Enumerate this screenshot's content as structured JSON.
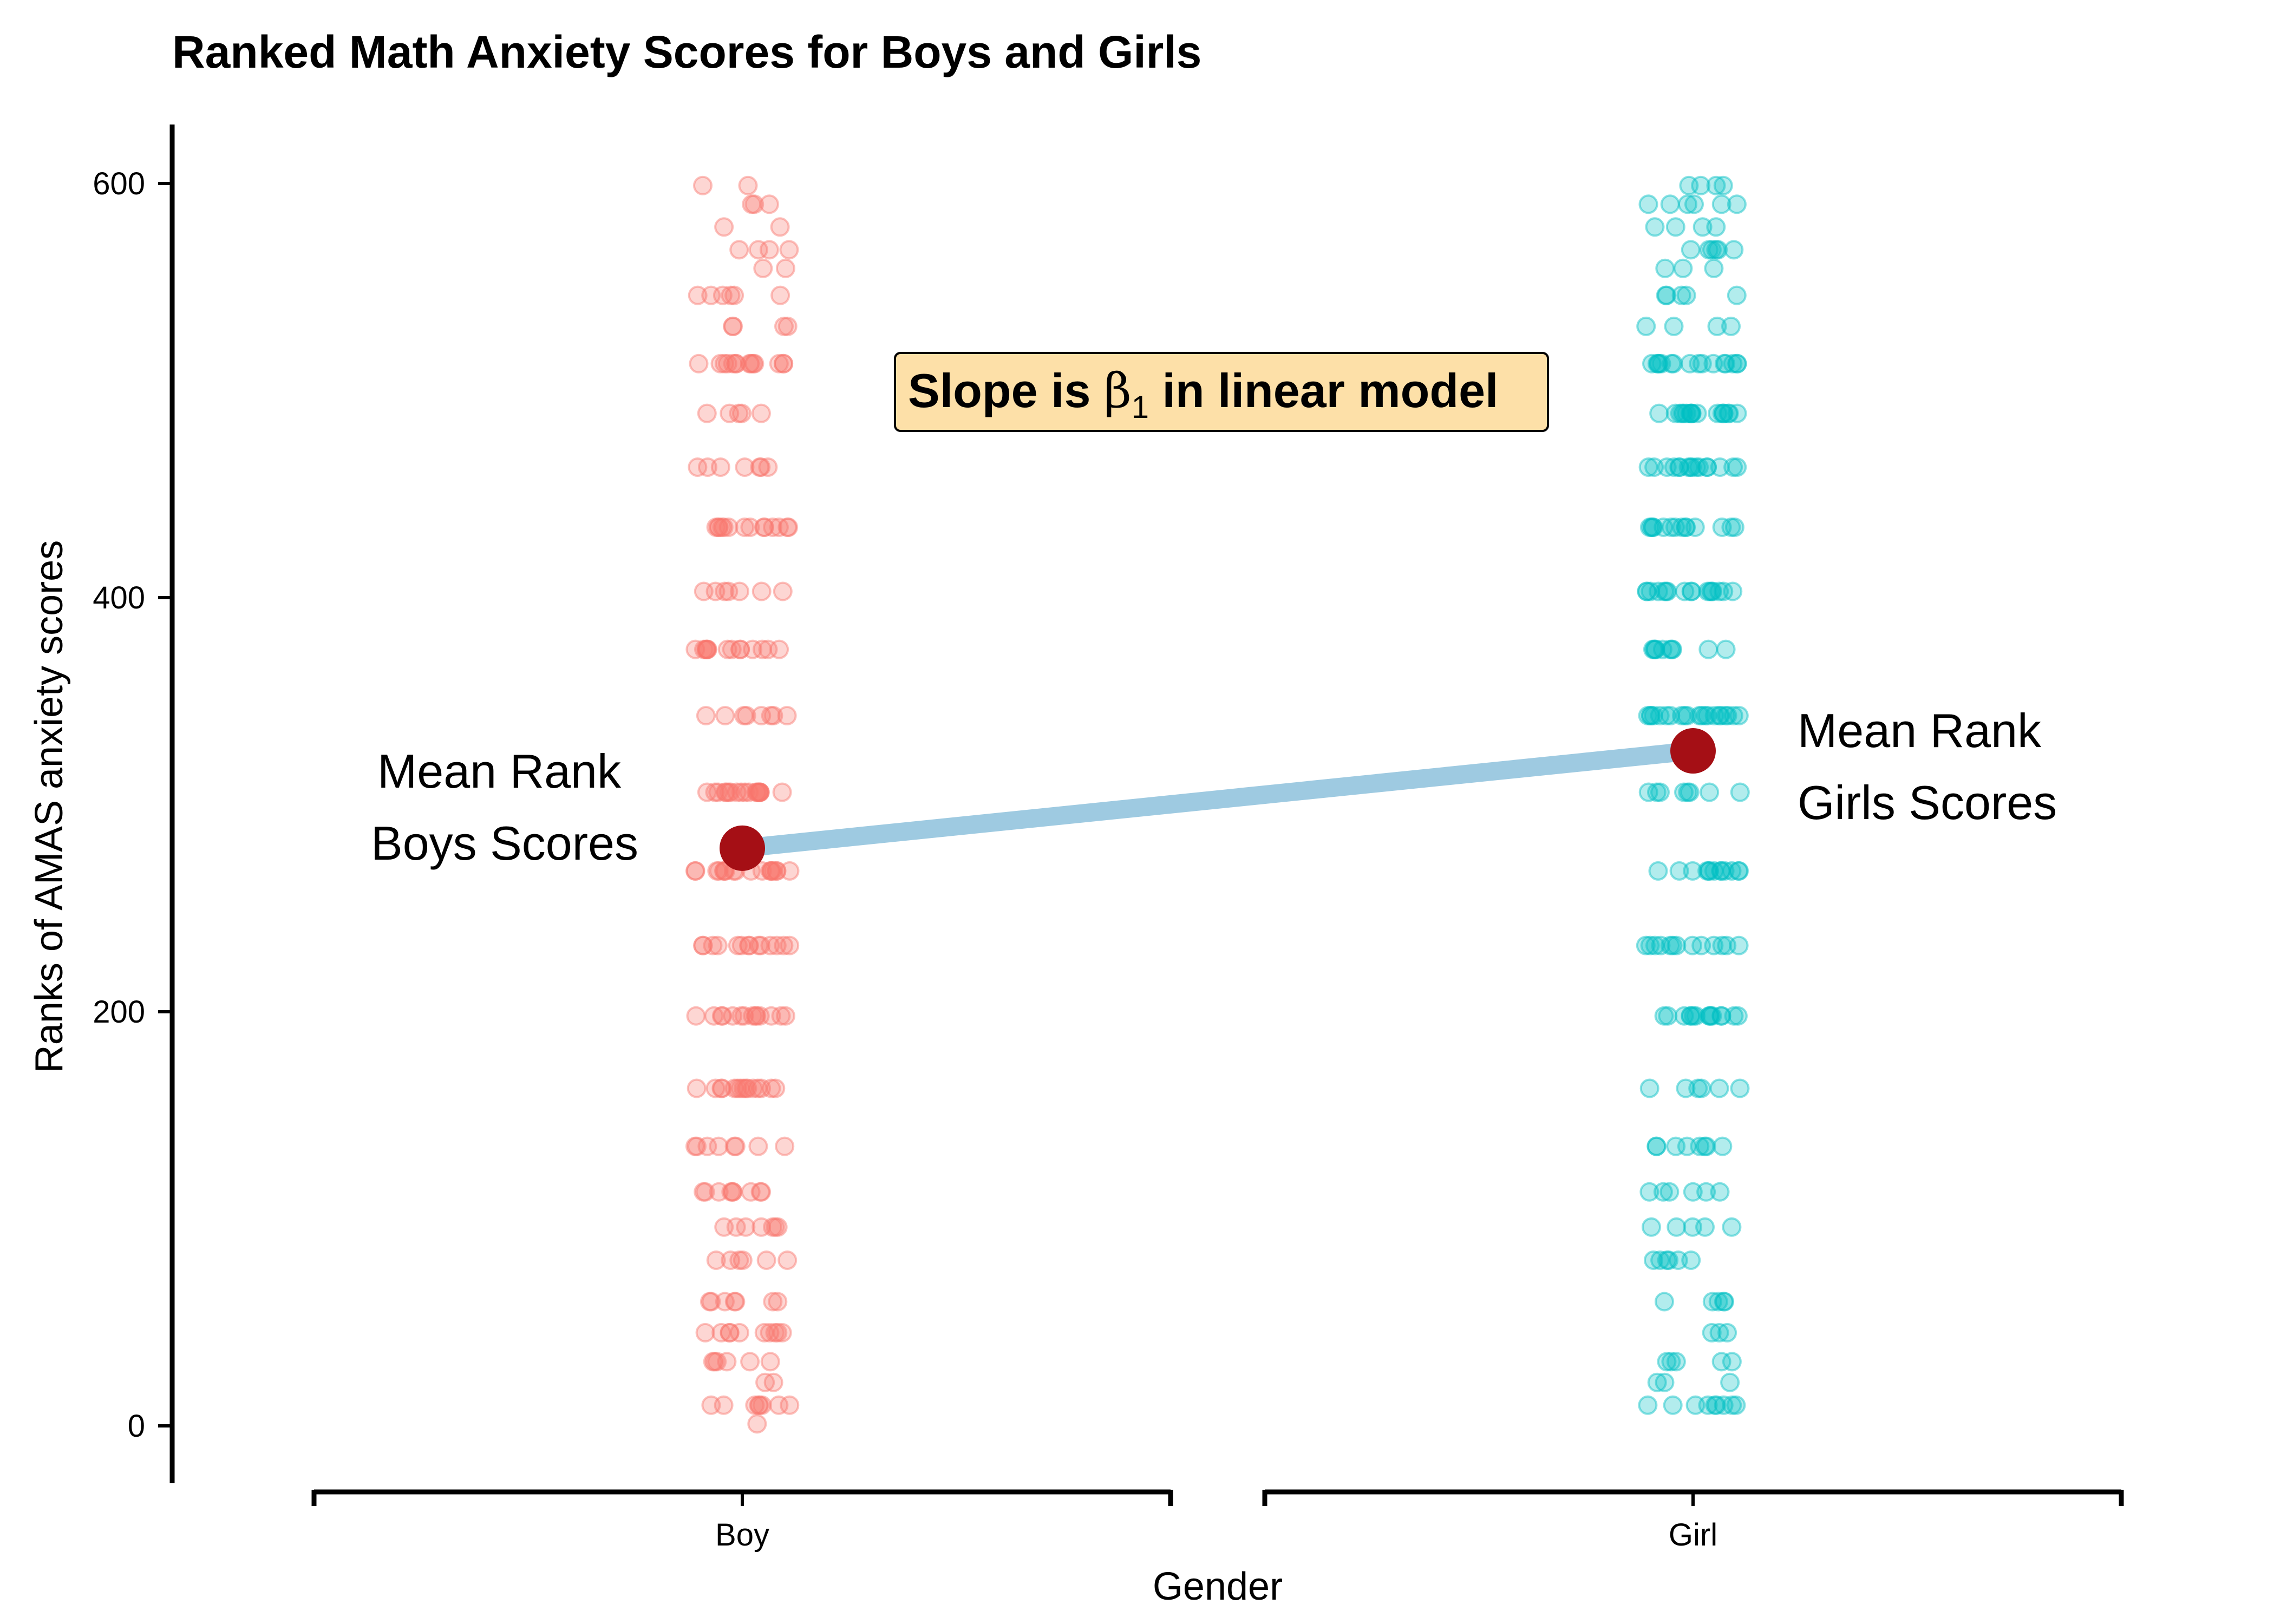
{
  "chart_data": {
    "type": "scatter",
    "title": "Ranked Math Anxiety Scores for Boys and Girls",
    "xlabel": "Gender",
    "ylabel": "Ranks of AMAS anxiety scores",
    "categories": [
      "Boy",
      "Girl"
    ],
    "ylim": [
      -28,
      628
    ],
    "yticks": [
      0,
      200,
      400,
      600
    ],
    "grid": false,
    "colors": {
      "Boy": "#f8766d",
      "Girl": "#00bfc4",
      "mean_point": "#a50f15",
      "slope_line": "#9ecae1",
      "annotation_box": "#fde0a8"
    },
    "rank_levels": [
      1,
      10,
      21,
      31,
      45,
      60,
      80,
      96,
      113,
      135,
      163,
      198,
      232,
      268,
      306,
      343,
      375,
      403,
      434,
      463,
      489,
      513,
      531,
      546,
      559,
      568,
      579,
      590,
      599
    ],
    "series": [
      {
        "name": "Boy",
        "counts": [
          1,
          8,
          2,
          6,
          10,
          7,
          6,
          7,
          9,
          8,
          15,
          14,
          14,
          18,
          19,
          8,
          14,
          7,
          14,
          7,
          5,
          14,
          4,
          6,
          2,
          4,
          2,
          3,
          2
        ]
      },
      {
        "name": "Girl",
        "counts": [
          0,
          9,
          3,
          5,
          3,
          5,
          6,
          5,
          6,
          8,
          6,
          15,
          13,
          13,
          8,
          21,
          10,
          17,
          14,
          16,
          18,
          16,
          4,
          5,
          3,
          6,
          4,
          6,
          4
        ]
      }
    ],
    "means": [
      {
        "category": "Boy",
        "value": 279
      },
      {
        "category": "Girl",
        "value": 326
      }
    ],
    "annotations": {
      "box": {
        "text_before": "Slope is ",
        "beta": "β",
        "subscript": "1",
        "text_after": " in linear model"
      },
      "boy_line1": "Mean Rank",
      "boy_line2": "Boys Scores",
      "girl_line1": "Mean Rank",
      "girl_line2": "Girls Scores"
    }
  }
}
